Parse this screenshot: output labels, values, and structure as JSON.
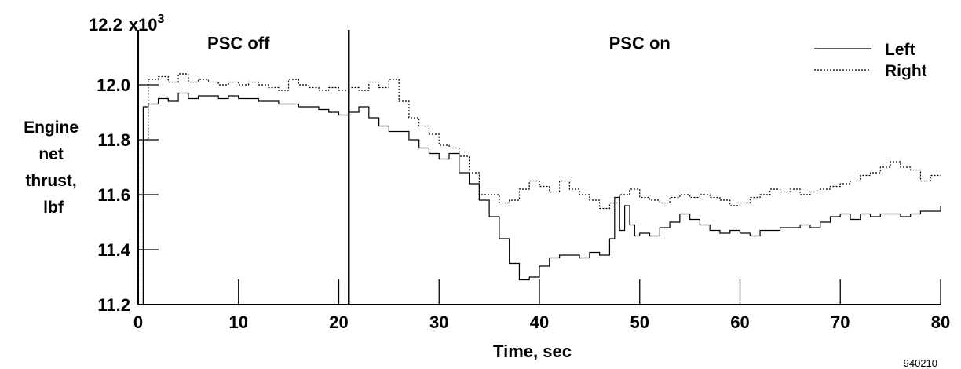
{
  "chart_data": {
    "type": "line",
    "title": "",
    "xlabel": "Time, sec",
    "ylabel": [
      "Engine",
      "net",
      "thrust,",
      "lbf"
    ],
    "y_multiplier_label": "x10",
    "y_multiplier_exp": "3",
    "xlim": [
      0,
      80
    ],
    "ylim": [
      11.2,
      12.2
    ],
    "x_ticks": [
      0,
      10,
      20,
      30,
      40,
      50,
      60,
      70,
      80
    ],
    "x_tick_labels": [
      "0",
      "10",
      "20",
      "30",
      "40",
      "50",
      "60",
      "70",
      "80"
    ],
    "y_ticks": [
      11.2,
      11.4,
      11.6,
      11.8,
      12.0,
      12.2
    ],
    "y_tick_labels": [
      "11.2",
      "11.4",
      "11.6",
      "11.8",
      "12.0",
      "12.2"
    ],
    "grid": false,
    "step": true,
    "legend": {
      "placement": "top-right",
      "entries": [
        "Left",
        "Right"
      ]
    },
    "annotations": [
      {
        "text": "PSC off",
        "x": 10,
        "y": 12.13
      },
      {
        "text": "PSC on",
        "x": 50,
        "y": 12.13
      }
    ],
    "vertical_line": {
      "x": 21
    },
    "figure_id": "940210",
    "series": [
      {
        "name": "Left",
        "style": "solid",
        "x": [
          0,
          0.5,
          1,
          2,
          3,
          4,
          5,
          6,
          7,
          8,
          9,
          10,
          11,
          12,
          13,
          14,
          15,
          16,
          17,
          18,
          19,
          20,
          21,
          22,
          23,
          24,
          25,
          26,
          27,
          28,
          29,
          30,
          31,
          32,
          33,
          34,
          35,
          36,
          37,
          38,
          39,
          40,
          41,
          42,
          43,
          44,
          45,
          46,
          47,
          47.5,
          48,
          48.5,
          49,
          49.5,
          50,
          51,
          52,
          53,
          54,
          55,
          56,
          57,
          58,
          59,
          60,
          61,
          62,
          63,
          64,
          65,
          66,
          67,
          68,
          69,
          70,
          71,
          72,
          73,
          74,
          75,
          76,
          77,
          78,
          79,
          80
        ],
        "y": [
          11.2,
          11.92,
          11.93,
          11.95,
          11.94,
          11.97,
          11.95,
          11.96,
          11.96,
          11.95,
          11.96,
          11.95,
          11.95,
          11.94,
          11.94,
          11.93,
          11.93,
          11.92,
          11.92,
          11.91,
          11.9,
          11.89,
          11.9,
          11.92,
          11.88,
          11.85,
          11.83,
          11.83,
          11.8,
          11.77,
          11.75,
          11.73,
          11.75,
          11.68,
          11.64,
          11.58,
          11.52,
          11.44,
          11.35,
          11.29,
          11.3,
          11.34,
          11.37,
          11.38,
          11.38,
          11.37,
          11.39,
          11.38,
          11.44,
          11.59,
          11.47,
          11.56,
          11.49,
          11.45,
          11.46,
          11.45,
          11.48,
          11.5,
          11.53,
          11.51,
          11.49,
          11.47,
          11.46,
          11.47,
          11.46,
          11.45,
          11.47,
          11.47,
          11.48,
          11.48,
          11.49,
          11.48,
          11.5,
          11.52,
          11.53,
          11.51,
          11.53,
          11.52,
          11.53,
          11.53,
          11.52,
          11.53,
          11.54,
          11.54,
          11.56
        ]
      },
      {
        "name": "Right",
        "style": "dotted",
        "x": [
          0,
          0.5,
          1,
          2,
          3,
          4,
          5,
          6,
          7,
          8,
          9,
          10,
          11,
          12,
          13,
          14,
          15,
          16,
          17,
          18,
          19,
          20,
          21,
          22,
          23,
          24,
          25,
          26,
          27,
          28,
          29,
          30,
          31,
          32,
          33,
          34,
          35,
          36,
          37,
          38,
          39,
          40,
          41,
          42,
          43,
          44,
          45,
          46,
          47,
          48,
          49,
          50,
          51,
          52,
          53,
          54,
          55,
          56,
          57,
          58,
          59,
          60,
          61,
          62,
          63,
          64,
          65,
          66,
          67,
          68,
          69,
          70,
          71,
          72,
          73,
          74,
          75,
          76,
          77,
          78,
          79,
          80
        ],
        "y": [
          11.2,
          11.8,
          12.02,
          12.03,
          12.01,
          12.04,
          12.01,
          12.02,
          12.01,
          12.0,
          12.01,
          12.0,
          12.01,
          12.0,
          11.99,
          11.98,
          12.02,
          12.0,
          11.99,
          11.98,
          11.99,
          11.98,
          11.99,
          11.98,
          12.01,
          11.99,
          12.02,
          11.94,
          11.88,
          11.85,
          11.82,
          11.78,
          11.77,
          11.74,
          11.68,
          11.6,
          11.6,
          11.57,
          11.58,
          11.62,
          11.65,
          11.63,
          11.61,
          11.65,
          11.62,
          11.6,
          11.58,
          11.55,
          11.57,
          11.6,
          11.62,
          11.59,
          11.58,
          11.57,
          11.59,
          11.6,
          11.59,
          11.6,
          11.59,
          11.58,
          11.56,
          11.57,
          11.59,
          11.6,
          11.62,
          11.61,
          11.62,
          11.6,
          11.61,
          11.62,
          11.63,
          11.64,
          11.65,
          11.67,
          11.68,
          11.7,
          11.72,
          11.7,
          11.69,
          11.65,
          11.67,
          11.67
        ]
      }
    ]
  }
}
